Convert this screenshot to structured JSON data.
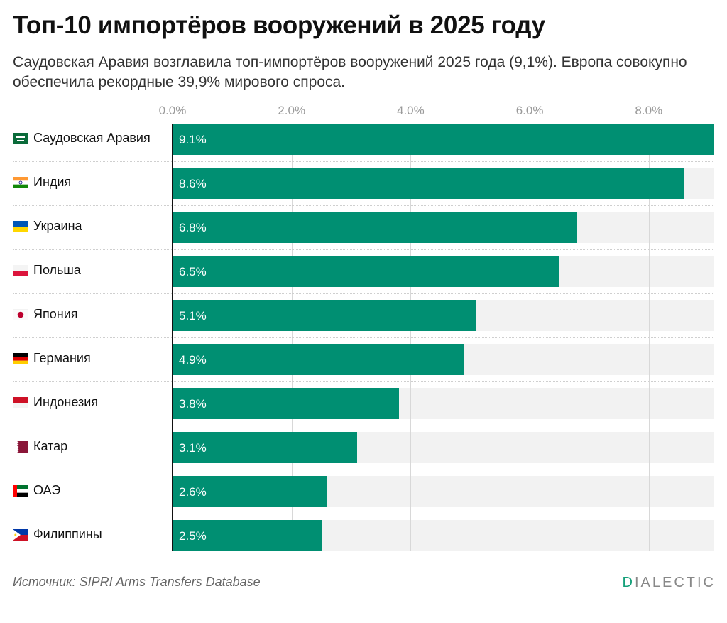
{
  "header": {
    "title": "Топ-10 импортёров вооружений в 2025 году",
    "subtitle": "Саудовская Аравия возглавила топ-импортёров вооружений 2025 года (9,1%). Европа совокупно обеспечила рекордные 39,9% мирового спроса."
  },
  "colors": {
    "bar": "#008f72",
    "track": "#f2f2f2",
    "brand_accent": "#15a07a"
  },
  "chart_data": {
    "type": "bar",
    "orientation": "horizontal",
    "title": "Топ-10 импортёров вооружений в 2025 году",
    "xlabel": "",
    "ylabel": "",
    "xlim": [
      0,
      9.1
    ],
    "ticks": [
      {
        "value": 0,
        "label": "0.0%"
      },
      {
        "value": 2,
        "label": "2.0%"
      },
      {
        "value": 4,
        "label": "4.0%"
      },
      {
        "value": 6,
        "label": "6.0%"
      },
      {
        "value": 8,
        "label": "8.0%"
      }
    ],
    "categories": [
      {
        "name": "Саудовская Аравия",
        "value": 9.1,
        "label": "9.1%",
        "flag": "saudi-arabia-flag-icon"
      },
      {
        "name": "Индия",
        "value": 8.6,
        "label": "8.6%",
        "flag": "india-flag-icon"
      },
      {
        "name": "Украина",
        "value": 6.8,
        "label": "6.8%",
        "flag": "ukraine-flag-icon"
      },
      {
        "name": "Польша",
        "value": 6.5,
        "label": "6.5%",
        "flag": "poland-flag-icon"
      },
      {
        "name": "Япония",
        "value": 5.1,
        "label": "5.1%",
        "flag": "japan-flag-icon"
      },
      {
        "name": "Германия",
        "value": 4.9,
        "label": "4.9%",
        "flag": "germany-flag-icon"
      },
      {
        "name": "Индонезия",
        "value": 3.8,
        "label": "3.8%",
        "flag": "indonesia-flag-icon"
      },
      {
        "name": "Катар",
        "value": 3.1,
        "label": "3.1%",
        "flag": "qatar-flag-icon"
      },
      {
        "name": "ОАЭ",
        "value": 2.6,
        "label": "2.6%",
        "flag": "uae-flag-icon"
      },
      {
        "name": "Филиппины",
        "value": 2.5,
        "label": "2.5%",
        "flag": "philippines-flag-icon"
      }
    ]
  },
  "footer": {
    "source": "Источник: SIPRI Arms Transfers Database",
    "brand_first": "D",
    "brand_rest": "IALECTIC"
  }
}
